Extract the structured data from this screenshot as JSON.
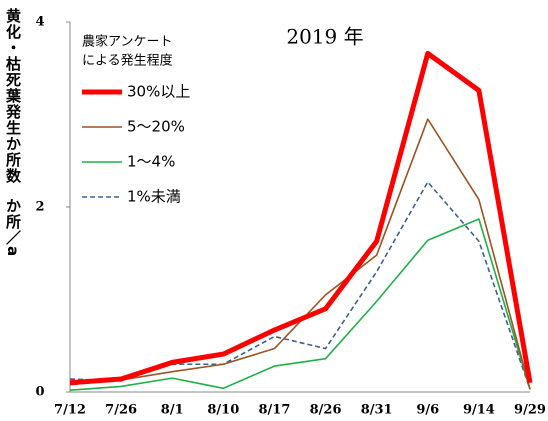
{
  "chart_data": {
    "type": "line",
    "title": "2019 年",
    "y_label": "黄化・枯死葉発生か所数",
    "y_unit": "か所／a",
    "legend_title": [
      "農家アンケート",
      "による発生程度"
    ],
    "categories": [
      "7/12",
      "7/26",
      "8/1",
      "8/10",
      "8/17",
      "8/26",
      "8/31",
      "9/6",
      "9/14",
      "9/29"
    ],
    "series": [
      {
        "name": "30%以上",
        "color": "#ff0000",
        "width": 5,
        "dash": false,
        "values": [
          0.1,
          0.14,
          0.32,
          0.41,
          0.67,
          0.9,
          1.63,
          3.66,
          3.26,
          0.1
        ]
      },
      {
        "name": "5～20%",
        "color": "#9c5320",
        "width": 1.6,
        "dash": false,
        "values": [
          0.08,
          0.13,
          0.22,
          0.3,
          0.47,
          1.05,
          1.48,
          2.95,
          2.08,
          0.03
        ]
      },
      {
        "name": "1～4%",
        "color": "#1fb04a",
        "width": 1.6,
        "dash": false,
        "values": [
          0.02,
          0.06,
          0.15,
          0.04,
          0.28,
          0.36,
          0.98,
          1.64,
          1.87,
          0.03
        ]
      },
      {
        "name": "1%未満",
        "color": "#3d5f8f",
        "width": 1.6,
        "dash": true,
        "values": [
          0.14,
          0.12,
          0.3,
          0.3,
          0.6,
          0.47,
          1.3,
          2.27,
          1.63,
          0.03
        ]
      }
    ],
    "ylim": [
      0,
      4
    ],
    "yticks": [
      0,
      2,
      4
    ],
    "grid": false
  }
}
